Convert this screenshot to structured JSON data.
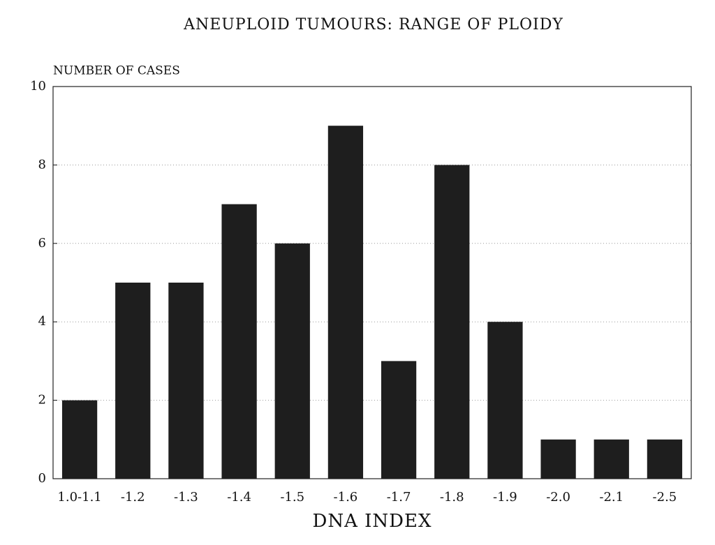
{
  "chart_data": {
    "type": "bar",
    "title": "ANEUPLOID TUMOURS: RANGE OF PLOIDY",
    "y_label": "NUMBER OF CASES",
    "x_label": "DNA INDEX",
    "categories": [
      "1.0-1.1",
      "-1.2",
      "-1.3",
      "-1.4",
      "-1.5",
      "-1.6",
      "-1.7",
      "-1.8",
      "-1.9",
      "-2.0",
      "-2.1",
      "-2.5"
    ],
    "values": [
      2,
      5,
      5,
      7,
      6,
      9,
      3,
      8,
      4,
      1,
      1,
      1
    ],
    "color": "#1e1e1e",
    "ylim": [
      0,
      10
    ],
    "yticks": [
      0,
      2,
      4,
      6,
      8,
      10
    ],
    "grid": true
  }
}
